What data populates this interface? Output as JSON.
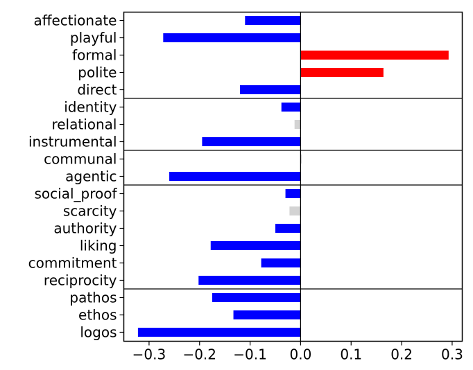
{
  "chart_data": {
    "type": "bar",
    "orientation": "horizontal",
    "title": "",
    "xlabel": "",
    "ylabel": "",
    "xlim": [
      -0.35,
      0.32
    ],
    "xticks": [
      -0.3,
      -0.2,
      -0.1,
      0.0,
      0.1,
      0.2,
      0.3
    ],
    "xtick_labels": [
      "−0.3",
      "−0.2",
      "−0.1",
      "0.0",
      "0.1",
      "0.2",
      "0.3"
    ],
    "zero_line": true,
    "grid": false,
    "legend": "none",
    "categories": [
      "affectionate",
      "playful",
      "formal",
      "polite",
      "direct",
      "identity",
      "relational",
      "instrumental",
      "communal",
      "agentic",
      "social_proof",
      "scarcity",
      "authority",
      "liking",
      "commitment",
      "reciprocity",
      "pathos",
      "ethos",
      "logos"
    ],
    "values": [
      -0.11,
      -0.272,
      0.293,
      0.164,
      -0.12,
      -0.038,
      -0.012,
      -0.195,
      0.002,
      -0.26,
      -0.03,
      -0.022,
      -0.05,
      -0.178,
      -0.078,
      -0.202,
      -0.175,
      -0.133,
      -0.322
    ],
    "colors": [
      "#0000ff",
      "#0000ff",
      "#ff0000",
      "#ff0000",
      "#0000ff",
      "#0000ff",
      "#d3d3d3",
      "#0000ff",
      "#d3d3d3",
      "#0000ff",
      "#0000ff",
      "#d3d3d3",
      "#0000ff",
      "#0000ff",
      "#0000ff",
      "#0000ff",
      "#0000ff",
      "#0000ff",
      "#0000ff"
    ],
    "group_separators_after": [
      "direct",
      "instrumental",
      "agentic",
      "reciprocity"
    ]
  }
}
